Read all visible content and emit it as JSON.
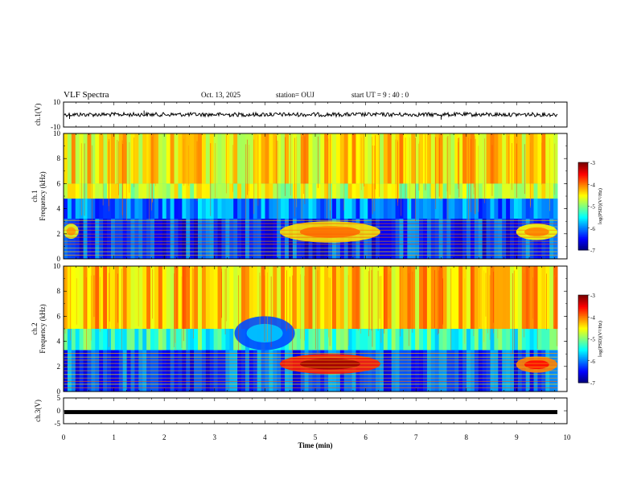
{
  "header": {
    "title": "VLF Spectra",
    "date": "Oct. 13, 2025",
    "station": "station= OUJ",
    "start": "start  UT =   9 : 40 : 0"
  },
  "chart_data": [
    {
      "id": "ch1-waveform",
      "type": "line",
      "ylabel": "ch.1(V)",
      "ylim": [
        -10,
        10
      ],
      "yticks": [
        "10",
        "-10"
      ],
      "xlim": [
        0,
        10
      ],
      "baseline": 0,
      "spikes": [
        {
          "x": 0.12,
          "y": -3.5
        },
        {
          "x": 1.6,
          "y": 3.2
        },
        {
          "x": 3.3,
          "y": -2.0
        },
        {
          "x": 4.1,
          "y": 1.8
        },
        {
          "x": 7.5,
          "y": -4.0
        }
      ]
    },
    {
      "id": "ch1-spectrogram",
      "type": "heatmap",
      "ylabel": "ch.1\nFrequency (kHz)",
      "ylabel_top": "ch.1",
      "ylabel_bottom": "Frequency (kHz)",
      "ylim": [
        0,
        10
      ],
      "yticks": [
        "0",
        "2",
        "4",
        "6",
        "8",
        "10"
      ],
      "xlim": [
        0,
        9.82
      ],
      "colorbar": {
        "label": "log(PSD)(V²/Hz)",
        "range": [
          -7,
          -3
        ],
        "ticks": [
          "-3",
          "-4",
          "-5",
          "-6",
          "-7"
        ]
      },
      "background_level": -5.6,
      "features": [
        {
          "kind": "band",
          "f_low": 4.8,
          "f_high": 6.0,
          "level": -4.7
        },
        {
          "kind": "band",
          "f_low": 6.0,
          "f_high": 10.0,
          "level": -4.4
        },
        {
          "kind": "band",
          "f_low": 3.2,
          "f_high": 4.8,
          "level": -6.0
        },
        {
          "kind": "band",
          "f_low": 0.0,
          "f_high": 3.2,
          "level": -6.3
        },
        {
          "kind": "blob",
          "t_start": 4.3,
          "t_end": 6.3,
          "f_low": 1.3,
          "f_high": 3.0,
          "level": -4.4
        },
        {
          "kind": "blob",
          "t_start": 9.0,
          "t_end": 9.82,
          "f_low": 1.5,
          "f_high": 2.8,
          "level": -4.5
        },
        {
          "kind": "blob",
          "t_start": 0.0,
          "t_end": 0.3,
          "f_low": 1.6,
          "f_high": 2.8,
          "level": -4.6
        }
      ]
    },
    {
      "id": "ch2-spectrogram",
      "type": "heatmap",
      "ylabel": "ch.2\nFrequency (kHz)",
      "ylabel_top": "ch.2",
      "ylabel_bottom": "Frequency (kHz)",
      "ylim": [
        0,
        10
      ],
      "yticks": [
        "0",
        "2",
        "4",
        "6",
        "8",
        "10"
      ],
      "xlim": [
        0,
        9.82
      ],
      "colorbar": {
        "label": "log(PSD)(V²/Hz)",
        "range": [
          -7,
          -3
        ],
        "ticks": [
          "-3",
          "-4",
          "-5",
          "-6",
          "-7"
        ]
      },
      "background_level": -5.2,
      "features": [
        {
          "kind": "band",
          "f_low": 5.0,
          "f_high": 10.0,
          "level": -4.3
        },
        {
          "kind": "band",
          "f_low": 3.3,
          "f_high": 5.0,
          "level": -5.3
        },
        {
          "kind": "band",
          "f_low": 0.0,
          "f_high": 3.3,
          "level": -6.2
        },
        {
          "kind": "blob",
          "t_start": 4.3,
          "t_end": 6.3,
          "f_low": 1.4,
          "f_high": 3.0,
          "level": -3.6
        },
        {
          "kind": "blob",
          "t_start": 9.0,
          "t_end": 9.82,
          "f_low": 1.5,
          "f_high": 2.8,
          "level": -4.0
        },
        {
          "kind": "blob",
          "t_start": 3.4,
          "t_end": 4.6,
          "f_low": 3.3,
          "f_high": 6.0,
          "level": -6.2
        }
      ]
    },
    {
      "id": "ch3-waveform",
      "type": "line",
      "ylabel": "ch.3(V)",
      "ylim": [
        -5,
        5
      ],
      "yticks": [
        "5",
        "0",
        "-5"
      ],
      "xlim": [
        0,
        10
      ],
      "baseline": -0.5
    }
  ],
  "xaxis": {
    "label": "Time (min)",
    "range": [
      0,
      10
    ],
    "ticks": [
      "0",
      "1",
      "2",
      "3",
      "4",
      "5",
      "6",
      "7",
      "8",
      "9",
      "10"
    ]
  },
  "colors": {
    "axis": "#000000",
    "trace": "#000000",
    "background": "#ffffff"
  }
}
